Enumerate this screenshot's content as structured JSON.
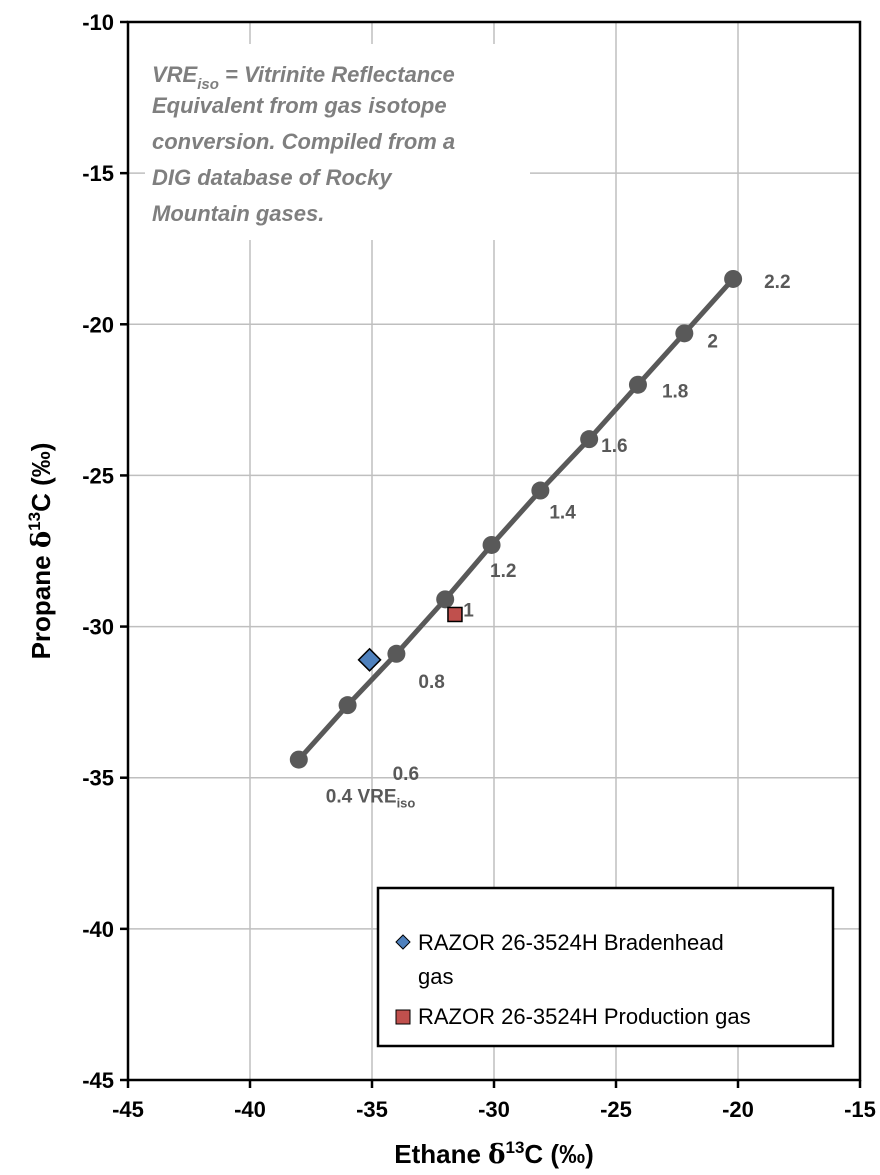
{
  "chart_data": {
    "type": "scatter",
    "xlabel": {
      "prefix": "Ethane ",
      "delta": "δ",
      "sup": "13",
      "suffix": "C (‰)"
    },
    "ylabel": {
      "prefix": "Propane ",
      "delta": "δ",
      "sup": "13",
      "suffix": "C (‰)"
    },
    "xlim": [
      -45,
      -15
    ],
    "ylim": [
      -45,
      -10
    ],
    "xticks": [
      -45,
      -40,
      -35,
      -30,
      -25,
      -20,
      -15
    ],
    "yticks": [
      -45,
      -40,
      -35,
      -30,
      -25,
      -20,
      -15,
      -10
    ],
    "grid": true,
    "legend_position": "bottom-right",
    "note": {
      "line1_main": "VRE",
      "line1_sub": "iso",
      "line1_rest": " = Vitrinite Reflectance",
      "line2": "Equivalent from gas isotope",
      "line3": "conversion.  Compiled from a",
      "line4": "DIG database of Rocky",
      "line5": "Mountain  gases."
    },
    "vre_line": {
      "color": "#595959",
      "x": [
        -38.0,
        -36.0,
        -34.0,
        -32.0,
        -30.1,
        -28.1,
        -26.1,
        -24.1,
        -22.2,
        -20.2
      ],
      "y": [
        -34.4,
        -32.6,
        -30.9,
        -29.1,
        -27.3,
        -25.5,
        -23.8,
        -22.0,
        -20.3,
        -18.5
      ],
      "labels": [
        "0.4 VRE",
        "0.6",
        "0.8",
        "1",
        "1.2",
        "1.4",
        "1.6",
        "1.8",
        "2",
        "2.2"
      ],
      "first_label_sub": "iso"
    },
    "series": [
      {
        "name": "RAZOR 26-3524H Bradenhead gas",
        "name_line1": "RAZOR 26-3524H Bradenhead",
        "name_line2": "gas",
        "marker": "diamond",
        "color": "#4f81bd",
        "x": [
          -35.1
        ],
        "y": [
          -31.1
        ]
      },
      {
        "name": "RAZOR 26-3524H Production gas",
        "marker": "square",
        "color": "#c0504d",
        "x": [
          -31.6
        ],
        "y": [
          -29.6
        ]
      }
    ]
  }
}
